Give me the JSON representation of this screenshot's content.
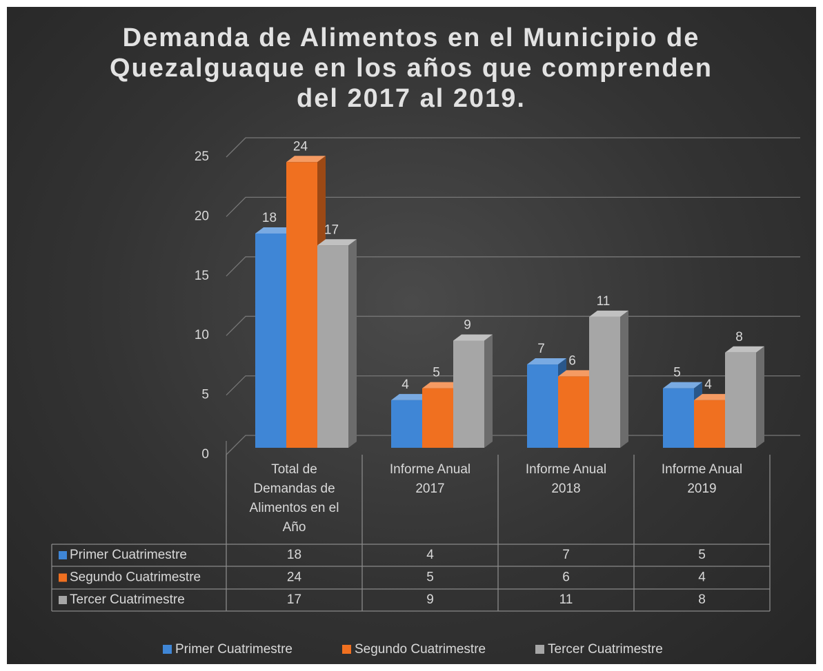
{
  "chart_data": {
    "type": "bar3d",
    "title": [
      "Demanda de Alimentos en el Municipio de",
      "Quezalguaque en los años que comprenden",
      "del 2017 al 2019."
    ],
    "categories": [
      "Total de Demandas de Alimentos en el Año",
      "Informe Anual 2017",
      "Informe Anual 2018",
      "Informe Anual 2019"
    ],
    "series": [
      {
        "name": "Primer Cuatrimestre",
        "color": "#3f86d6",
        "values": [
          18,
          4,
          7,
          5
        ]
      },
      {
        "name": "Segundo Cuatrimestre",
        "color": "#f07020",
        "values": [
          24,
          5,
          6,
          4
        ]
      },
      {
        "name": "Tercer Cuatrimestre",
        "color": "#a6a6a6",
        "values": [
          17,
          9,
          11,
          8
        ]
      }
    ],
    "ylim": [
      0,
      25
    ],
    "yticks": [
      0,
      5,
      10,
      15,
      20,
      25
    ],
    "grid": true,
    "legend": "bottom",
    "data_table": true
  }
}
